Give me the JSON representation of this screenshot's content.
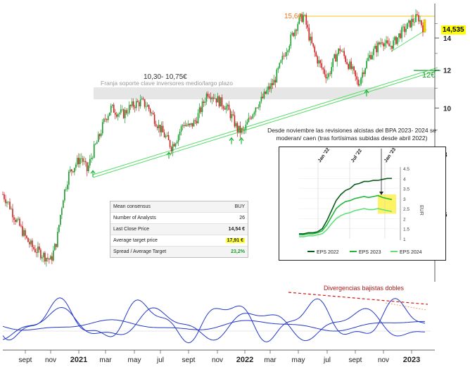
{
  "chart_data": [
    {
      "type": "line",
      "title": "",
      "y_axis": {
        "scale": "log",
        "ticks": [
          14,
          12,
          10,
          8,
          6
        ]
      },
      "x_axis": {
        "month_ticks": [
          "sept",
          "nov",
          "2021",
          "mar",
          "may",
          "jul",
          "sept",
          "nov",
          "2022",
          "mar",
          "may",
          "jul",
          "sept",
          "nov",
          "2023"
        ],
        "bold_years": [
          "2021",
          "2022",
          "2023"
        ],
        "range": [
          "2020-08",
          "2023-02"
        ]
      },
      "series": [
        {
          "name": "price",
          "color": "#1a9c2c",
          "points": [
            {
              "t": 0,
              "v": 6.6
            },
            {
              "t": 1,
              "v": 6.3
            },
            {
              "t": 2,
              "v": 5.9
            },
            {
              "t": 3,
              "v": 5.6
            },
            {
              "t": 4,
              "v": 5.3
            },
            {
              "t": 5,
              "v": 5.1
            },
            {
              "t": 6,
              "v": 5.0
            },
            {
              "t": 7,
              "v": 4.9
            },
            {
              "t": 8,
              "v": 4.8
            },
            {
              "t": 9,
              "v": 5.3
            },
            {
              "t": 10,
              "v": 6.5
            },
            {
              "t": 11,
              "v": 7.3
            },
            {
              "t": 12,
              "v": 7.6
            },
            {
              "t": 13,
              "v": 7.9
            },
            {
              "t": 14,
              "v": 7.4
            },
            {
              "t": 15,
              "v": 8.1
            },
            {
              "t": 16,
              "v": 8.7
            },
            {
              "t": 17,
              "v": 9.5
            },
            {
              "t": 18,
              "v": 10.0
            },
            {
              "t": 19,
              "v": 9.8
            },
            {
              "t": 20,
              "v": 9.7
            },
            {
              "t": 21,
              "v": 10.0
            },
            {
              "t": 22,
              "v": 10.2
            },
            {
              "t": 23,
              "v": 10.3
            },
            {
              "t": 24,
              "v": 10.1
            },
            {
              "t": 25,
              "v": 9.6
            },
            {
              "t": 26,
              "v": 9.1
            },
            {
              "t": 27,
              "v": 8.7
            },
            {
              "t": 28,
              "v": 8.3
            },
            {
              "t": 29,
              "v": 8.7
            },
            {
              "t": 30,
              "v": 9.3
            },
            {
              "t": 31,
              "v": 9.1
            },
            {
              "t": 32,
              "v": 9.4
            },
            {
              "t": 33,
              "v": 10.0
            },
            {
              "t": 34,
              "v": 10.8
            },
            {
              "t": 35,
              "v": 10.6
            },
            {
              "t": 36,
              "v": 10.3
            },
            {
              "t": 37,
              "v": 10.1
            },
            {
              "t": 38,
              "v": 9.6
            },
            {
              "t": 39,
              "v": 9.0
            },
            {
              "t": 40,
              "v": 8.9
            },
            {
              "t": 41,
              "v": 9.5
            },
            {
              "t": 42,
              "v": 10.1
            },
            {
              "t": 43,
              "v": 10.4
            },
            {
              "t": 44,
              "v": 10.9
            },
            {
              "t": 45,
              "v": 11.3
            },
            {
              "t": 46,
              "v": 12.2
            },
            {
              "t": 47,
              "v": 13.2
            },
            {
              "t": 48,
              "v": 14.1
            },
            {
              "t": 49,
              "v": 15.1
            },
            {
              "t": 50,
              "v": 15.6
            },
            {
              "t": 51,
              "v": 13.9
            },
            {
              "t": 52,
              "v": 12.8
            },
            {
              "t": 53,
              "v": 12.1
            },
            {
              "t": 54,
              "v": 11.6
            },
            {
              "t": 55,
              "v": 12.6
            },
            {
              "t": 56,
              "v": 13.3
            },
            {
              "t": 57,
              "v": 12.6
            },
            {
              "t": 58,
              "v": 12.0
            },
            {
              "t": 59,
              "v": 11.2
            },
            {
              "t": 60,
              "v": 12.1
            },
            {
              "t": 61,
              "v": 12.9
            },
            {
              "t": 62,
              "v": 13.3
            },
            {
              "t": 63,
              "v": 13.9
            },
            {
              "t": 64,
              "v": 13.4
            },
            {
              "t": 65,
              "v": 13.7
            },
            {
              "t": 66,
              "v": 14.3
            },
            {
              "t": 67,
              "v": 14.7
            },
            {
              "t": 68,
              "v": 15.2
            },
            {
              "t": 69,
              "v": 15.5
            },
            {
              "t": 70,
              "v": 14.535
            }
          ]
        },
        {
          "name": "EPS 2022",
          "color": "#0a5c1a",
          "chart_ref": 1
        },
        {
          "name": "EPS 2023",
          "color": "#1fb83a",
          "chart_ref": 1
        },
        {
          "name": "EPS 2024",
          "color": "#5fe07a",
          "chart_ref": 1
        }
      ],
      "annotations": {
        "resistance": "15,6€",
        "support_zone_range": "10,30- 10,75€",
        "support_zone_label": "Franja soporte clave inversores medio/largo plazo",
        "level_12": "12€",
        "last_price": "14,535",
        "divergence_label": "Divergencias bajistas dobles",
        "eps_note": "Desde noviembre las revisiones alcistas del BPA 2023- 2024 se moderan/ caen (tras fortísimas subidas desde abril 2022)"
      },
      "consensus_table": {
        "rows": [
          {
            "label": "Mean consensus",
            "value": "BUY"
          },
          {
            "label": "Number of Analysts",
            "value": "26"
          },
          {
            "label": "Last Close Price",
            "value": "14,54 €"
          },
          {
            "label": "Average target price",
            "value": "17,91 €"
          },
          {
            "label": "Spread / Average Target",
            "value": "23,2%"
          }
        ]
      }
    },
    {
      "type": "line",
      "title": "",
      "x_ticks": [
        "Jan '22",
        "Jul '22",
        "Jan '23"
      ],
      "y_ticks": [
        "4.5",
        "4",
        "3.5",
        "3",
        "2.5",
        "2",
        "1.5",
        "1"
      ],
      "ylabel": "EUR",
      "ylim": [
        1,
        4.5
      ],
      "series": [
        {
          "name": "EPS 2022",
          "values": [
            1.25,
            1.25,
            1.3,
            1.3,
            1.35,
            1.5,
            1.9,
            2.4,
            2.9,
            3.2,
            3.4,
            3.5,
            3.7,
            3.75,
            3.85,
            3.85,
            3.9,
            3.9,
            3.95,
            4.0,
            4.0
          ]
        },
        {
          "name": "EPS 2023",
          "values": [
            1.2,
            1.2,
            1.25,
            1.25,
            1.3,
            1.4,
            1.7,
            2.1,
            2.5,
            2.7,
            2.85,
            2.9,
            3.0,
            3.05,
            3.1,
            3.05,
            3.1,
            3.15,
            3.05,
            3.0,
            2.95
          ]
        },
        {
          "name": "EPS 2024",
          "values": [
            1.1,
            1.1,
            1.15,
            1.15,
            1.2,
            1.25,
            1.45,
            1.75,
            2.0,
            2.15,
            2.25,
            2.3,
            2.4,
            2.45,
            2.5,
            2.45,
            2.45,
            2.5,
            2.45,
            2.4,
            2.35
          ]
        }
      ]
    }
  ]
}
